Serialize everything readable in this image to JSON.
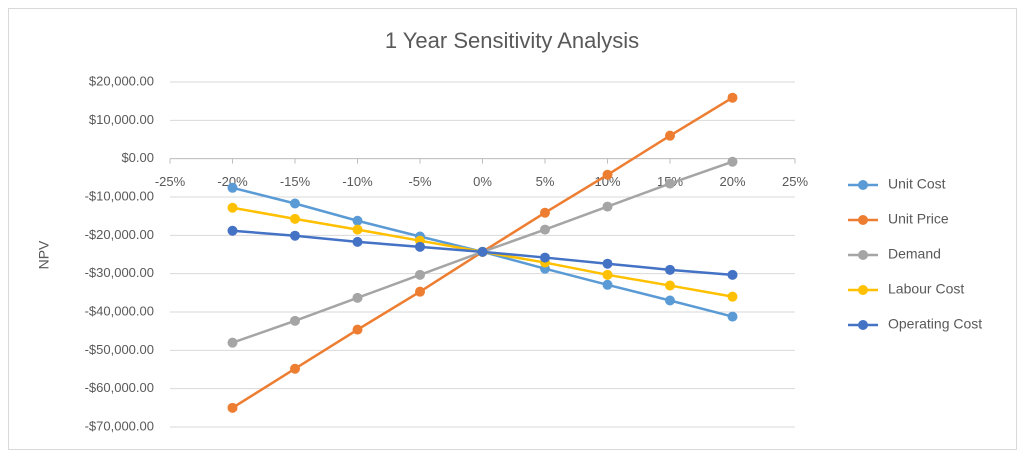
{
  "chart_data": {
    "type": "line",
    "title": "1 Year Sensitivity Analysis",
    "y_label": "NPV",
    "x": [
      -20,
      -15,
      -10,
      -5,
      0,
      5,
      10,
      15,
      20
    ],
    "xlim": [
      -25,
      25
    ],
    "xticks": [
      {
        "value": -25,
        "label": "-25%"
      },
      {
        "value": -20,
        "label": "-20%"
      },
      {
        "value": -15,
        "label": "-15%"
      },
      {
        "value": -10,
        "label": "-10%"
      },
      {
        "value": -5,
        "label": "-5%"
      },
      {
        "value": 0,
        "label": "0%"
      },
      {
        "value": 5,
        "label": "5%"
      },
      {
        "value": 10,
        "label": "10%"
      },
      {
        "value": 15,
        "label": "15%"
      },
      {
        "value": 20,
        "label": "20%"
      },
      {
        "value": 25,
        "label": "25%"
      }
    ],
    "ylim": [
      -70000,
      20000
    ],
    "yticks": [
      {
        "value": 20000,
        "label": "$20,000.00"
      },
      {
        "value": 10000,
        "label": "$10,000.00"
      },
      {
        "value": 0,
        "label": "$0.00"
      },
      {
        "value": -10000,
        "label": "-$10,000.00"
      },
      {
        "value": -20000,
        "label": "-$20,000.00"
      },
      {
        "value": -30000,
        "label": "-$30,000.00"
      },
      {
        "value": -40000,
        "label": "-$40,000.00"
      },
      {
        "value": -50000,
        "label": "-$50,000.00"
      },
      {
        "value": -60000,
        "label": "-$60,000.00"
      },
      {
        "value": -70000,
        "label": "-$70,000.00"
      }
    ],
    "grid": true,
    "legend": "right",
    "series": [
      {
        "name": "Unit Cost",
        "color": "#5b9bd5",
        "values": [
          -7600,
          -11700,
          -16200,
          -20300,
          -24300,
          -28700,
          -32900,
          -37000,
          -41200
        ]
      },
      {
        "name": "Unit Price",
        "color": "#ed7d31",
        "values": [
          -65000,
          -54800,
          -44600,
          -34700,
          -24300,
          -14100,
          -4200,
          6000,
          15900
        ]
      },
      {
        "name": "Demand",
        "color": "#a5a5a5",
        "values": [
          -48000,
          -42300,
          -36300,
          -30300,
          -24300,
          -18500,
          -12500,
          -6500,
          -800
        ]
      },
      {
        "name": "Labour Cost",
        "color": "#ffc000",
        "values": [
          -12800,
          -15700,
          -18500,
          -21400,
          -24300,
          -27100,
          -30300,
          -33100,
          -36000
        ]
      },
      {
        "name": "Operating Cost",
        "color": "#4472c4",
        "values": [
          -18800,
          -20100,
          -21700,
          -23000,
          -24300,
          -25800,
          -27400,
          -29000,
          -30300
        ]
      }
    ]
  }
}
